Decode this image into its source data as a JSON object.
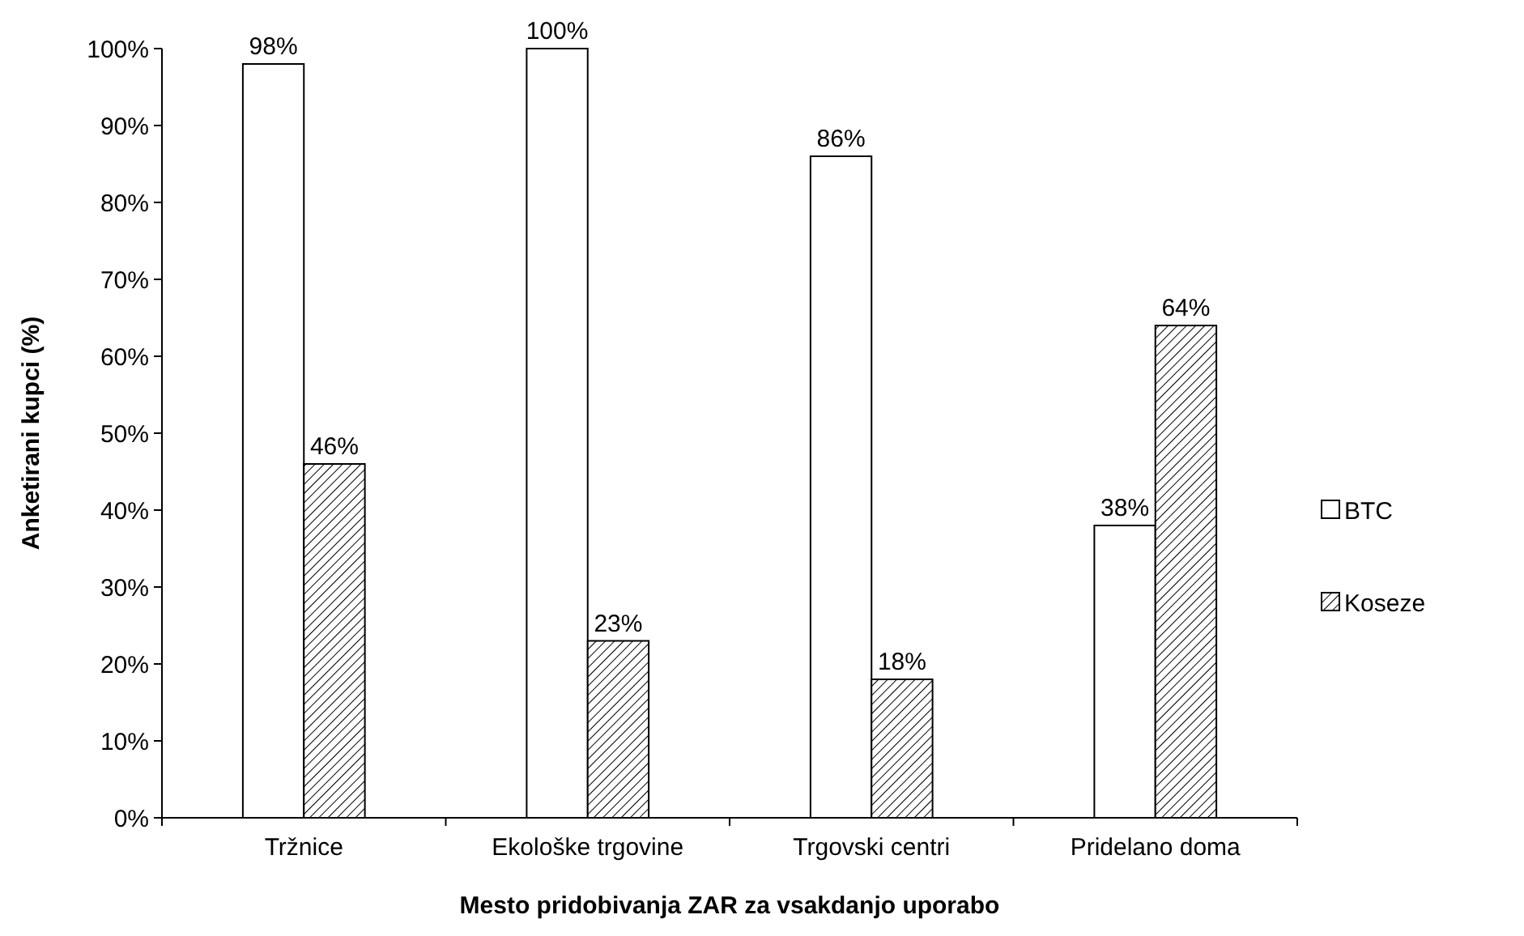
{
  "chart_data": {
    "type": "bar",
    "xlabel": "Mesto pridobivanja ZAR za vsakdanjo uporabo",
    "ylabel": "Anketirani kupci (%)",
    "categories": [
      "Tržnice",
      "Ekološke trgovine",
      "Trgovski centri",
      "Pridelano doma"
    ],
    "series": [
      {
        "name": "BTC",
        "color": "#ffffff",
        "values": [
          98,
          100,
          86,
          38
        ],
        "value_labels": [
          "98%",
          "100%",
          "86%",
          "38%"
        ]
      },
      {
        "name": "Koseze",
        "color": "#000000",
        "values": [
          46,
          23,
          18,
          64
        ],
        "value_labels": [
          "46%",
          "23%",
          "18%",
          "64%"
        ]
      }
    ],
    "ylim": [
      0,
      100
    ],
    "yticks": [
      {
        "value": 0,
        "label": "0%"
      },
      {
        "value": 10,
        "label": "10%"
      },
      {
        "value": 20,
        "label": "20%"
      },
      {
        "value": 30,
        "label": "30%"
      },
      {
        "value": 40,
        "label": "40%"
      },
      {
        "value": 50,
        "label": "50%"
      },
      {
        "value": 60,
        "label": "60%"
      },
      {
        "value": 70,
        "label": "70%"
      },
      {
        "value": 80,
        "label": "80%"
      },
      {
        "value": 90,
        "label": "90%"
      },
      {
        "value": 100,
        "label": "100%"
      }
    ],
    "grid": false,
    "legend": "right"
  }
}
